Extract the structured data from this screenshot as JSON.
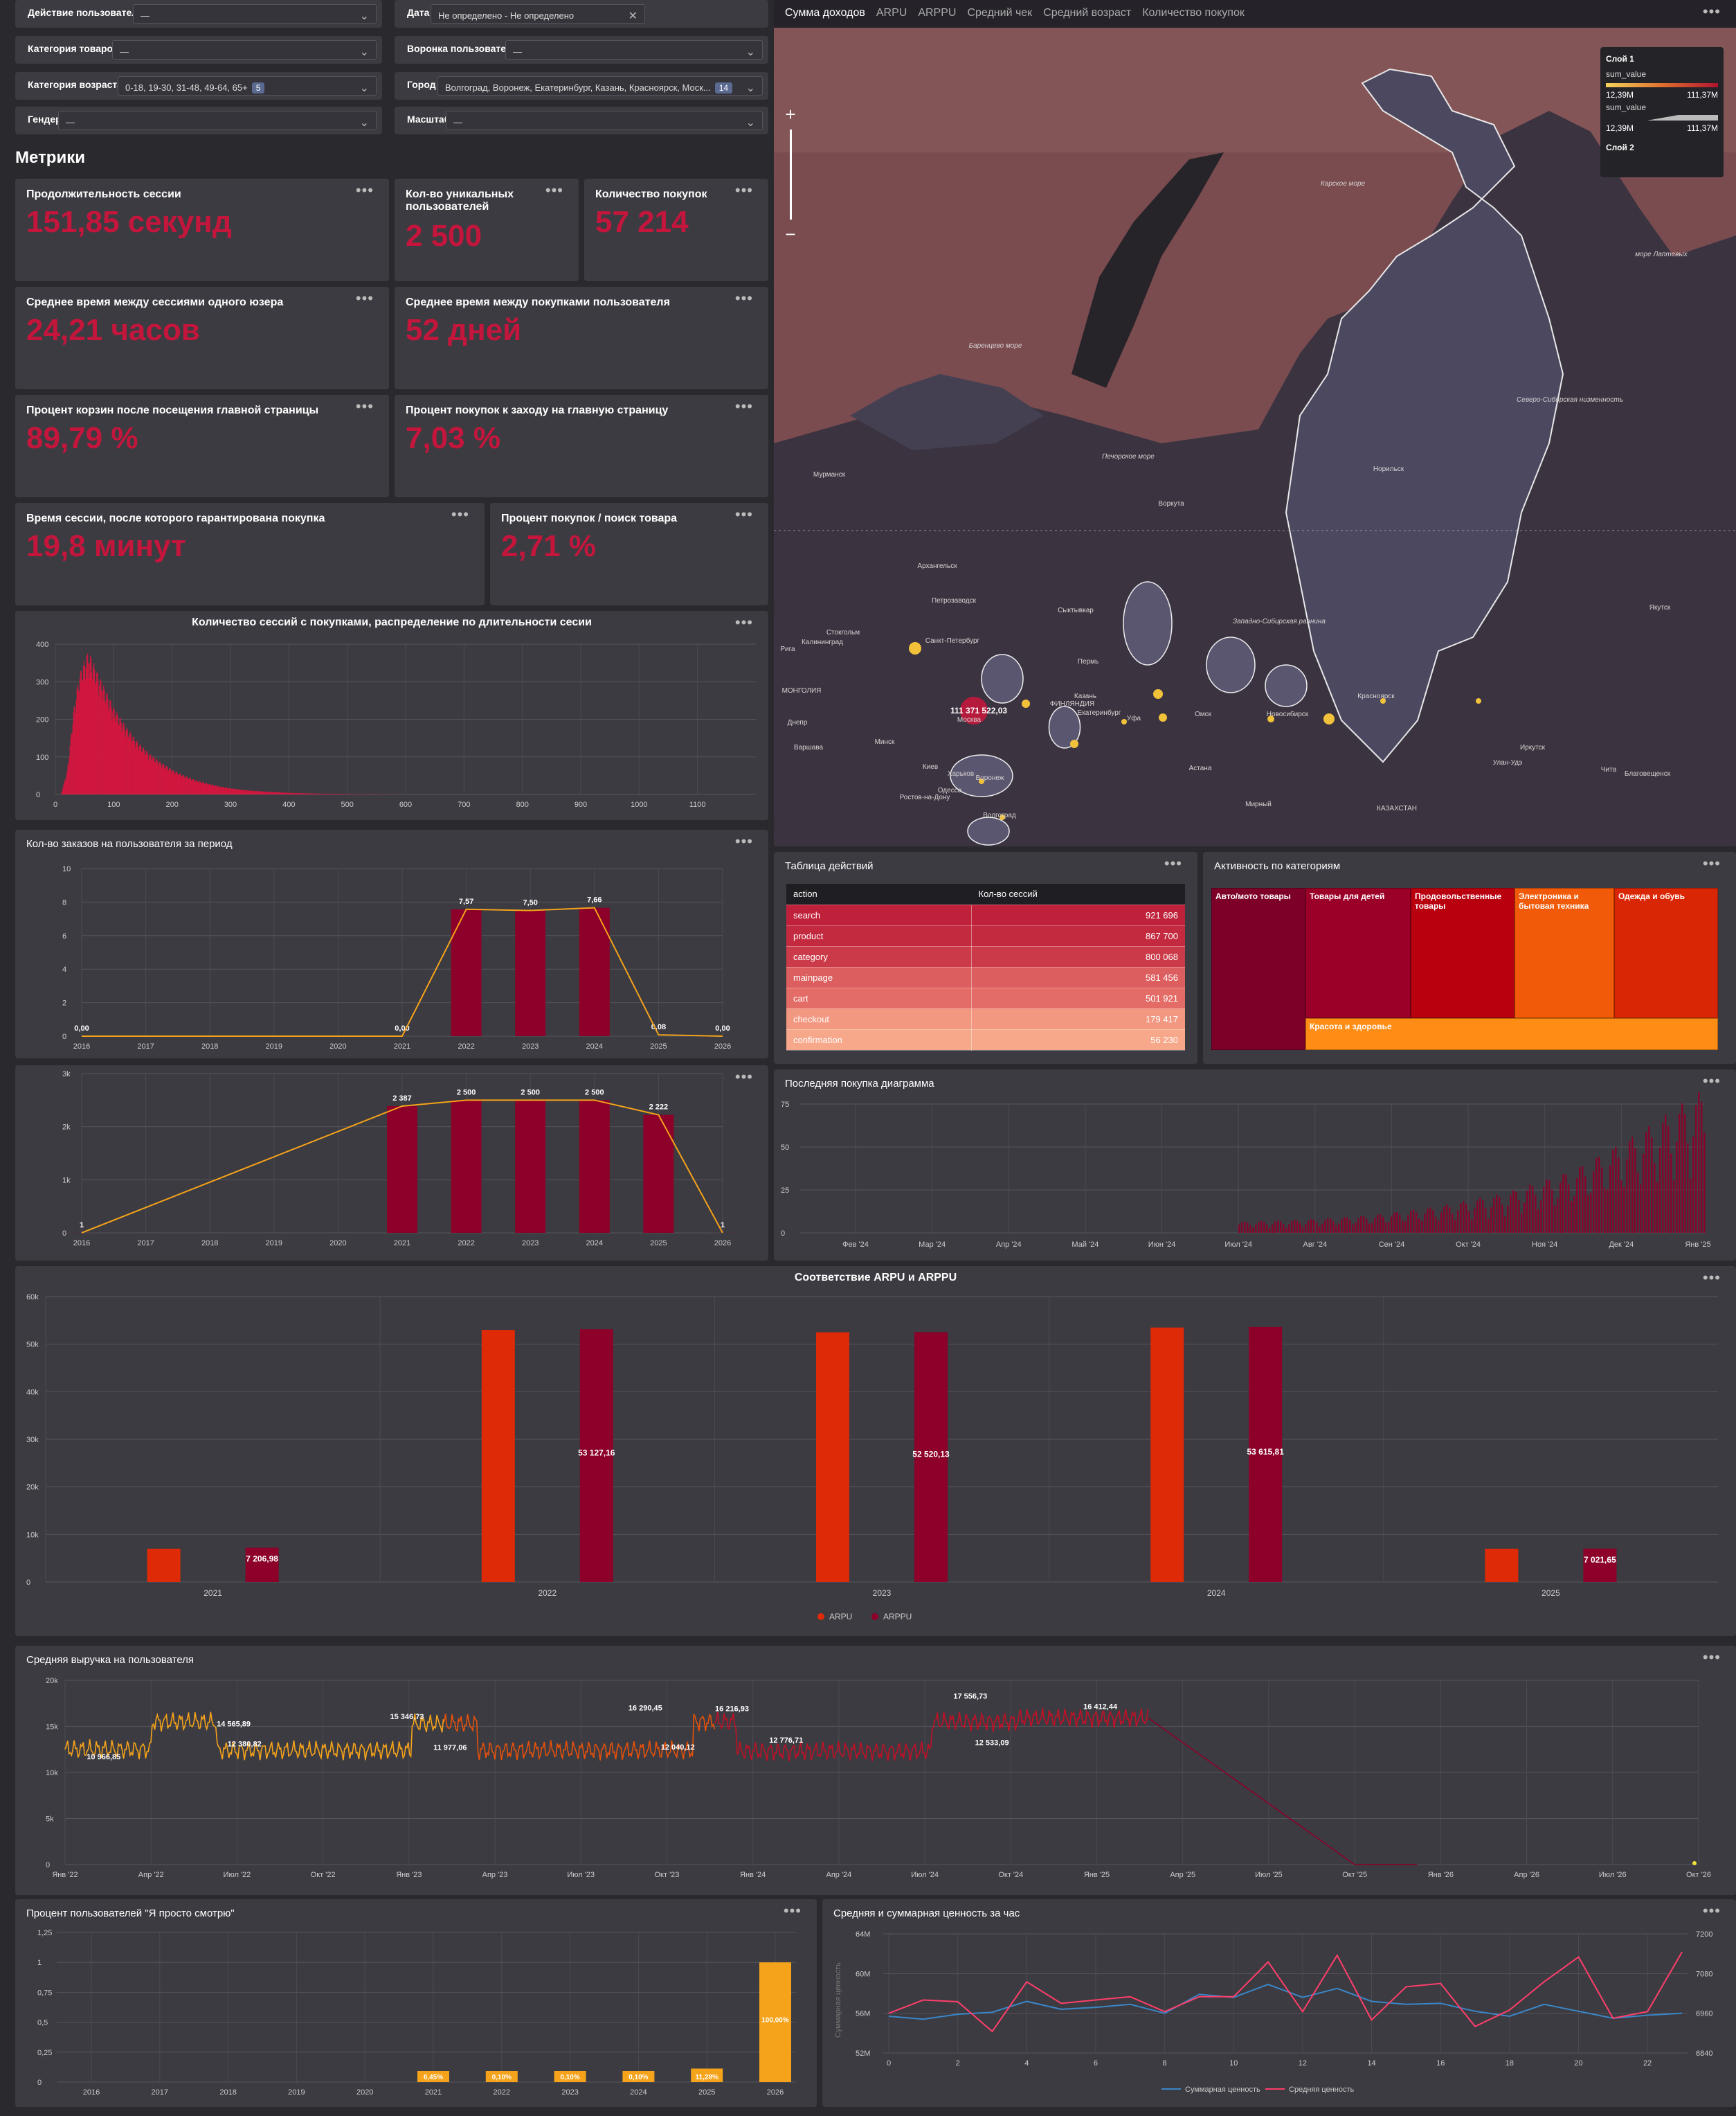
{
  "filters": [
    {
      "label": "Действие пользователя",
      "value": "—",
      "badge": ""
    },
    {
      "label": "Дата",
      "value": "Не определено - Не определено",
      "badge": ""
    },
    {
      "label": "Категория товаров",
      "value": "—",
      "badge": ""
    },
    {
      "label": "Воронка пользователя",
      "value": "—",
      "badge": ""
    },
    {
      "label": "Категория возраста",
      "value": "0-18, 19-30, 31-48, 49-64, 65+",
      "badge": "5"
    },
    {
      "label": "Город",
      "value": "Волгоград, Воронеж, Екатеринбург, Казань, Красноярск, Моск...",
      "badge": "14"
    },
    {
      "label": "Гендер",
      "value": "—",
      "badge": ""
    },
    {
      "label": "Масштаб",
      "value": "—",
      "badge": ""
    }
  ],
  "section_title": "Метрики",
  "metrics": [
    {
      "title": "Продолжительность сессии",
      "value": "151,85 секунд"
    },
    {
      "title": "Кол-во уникальных пользователей",
      "value": "2 500"
    },
    {
      "title": "Количество покупок",
      "value": "57 214"
    },
    {
      "title": "Среднее время между сессиями одного юзера",
      "value": "24,21 часов"
    },
    {
      "title": "Среднее время между покупками пользователя",
      "value": "52 дней"
    },
    {
      "title": "Процент корзин после посещения главной страницы",
      "value": "89,79 %"
    },
    {
      "title": "Процент покупок к заходу на главную страницу",
      "value": "7,03 %"
    },
    {
      "title": "Время сессии, после которого гарантирована покупка",
      "value": "19,8 минут"
    },
    {
      "title": "Процент покупок / поиск товара",
      "value": "2,71 %"
    }
  ],
  "menu_glyph": "•••",
  "map": {
    "tabs": [
      "Сумма доходов",
      "ARPU",
      "ARPPU",
      "Средний чек",
      "Средний возраст",
      "Количество покупок"
    ],
    "zoom_in": "+",
    "zoom_out": "−",
    "legend": {
      "layer1": "Слой 1",
      "field1": "sum_value",
      "min1": "12,39M",
      "max1": "111,37M",
      "field2": "sum_value",
      "min2": "12,39M",
      "max2": "111,37M",
      "layer2": "Слой 2"
    },
    "bubble_label": "111 371 522,03",
    "labels": [
      {
        "text": "Карское море"
      },
      {
        "text": "море Лаптевых"
      },
      {
        "text": "Баренцево море"
      },
      {
        "text": "Печорское море"
      },
      {
        "text": "Северо-Сибирская низменность"
      },
      {
        "text": "Западно-Сибирская равнина"
      },
      {
        "text": "Норильск"
      },
      {
        "text": "Мурманск"
      },
      {
        "text": "Воркута"
      },
      {
        "text": "Архангельск"
      },
      {
        "text": "Петрозаводск"
      },
      {
        "text": "Санкт-Петербург"
      },
      {
        "text": "Сыктывкар"
      },
      {
        "text": "Пермь"
      },
      {
        "text": "Казань"
      },
      {
        "text": "Уфа"
      },
      {
        "text": "Екатеринбург"
      },
      {
        "text": "Омск"
      },
      {
        "text": "Новосибирск"
      },
      {
        "text": "Красноярск"
      },
      {
        "text": "Иркутск"
      },
      {
        "text": "Якутск"
      },
      {
        "text": "Улан-Удэ"
      },
      {
        "text": "Чита"
      },
      {
        "text": "Благовещенск"
      },
      {
        "text": "Астана"
      },
      {
        "text": "Москва"
      },
      {
        "text": "Минск"
      },
      {
        "text": "Варшава"
      },
      {
        "text": "Киев"
      },
      {
        "text": "Харьков"
      },
      {
        "text": "Воронеж"
      },
      {
        "text": "Волгоград"
      },
      {
        "text": "Ростов-на-Дону"
      },
      {
        "text": "Одесса"
      },
      {
        "text": "Днепр"
      },
      {
        "text": "Калининград"
      },
      {
        "text": "Рига"
      },
      {
        "text": "Стокгольм"
      },
      {
        "text": "Хельсинки"
      },
      {
        "text": "Мирный"
      },
      {
        "text": "КАЗАХСТАН"
      },
      {
        "text": "МОНГОЛИЯ"
      },
      {
        "text": "ФИНЛЯНДИЯ"
      }
    ]
  },
  "duration_hist": {
    "title": "Количество сессий с покупками, распределение по длительности сесии",
    "chart_data": {
      "type": "bar",
      "xlim": [
        0,
        1200
      ],
      "ylim": [
        0,
        400
      ],
      "x_ticks": [
        0,
        100,
        200,
        300,
        400,
        500,
        600,
        700,
        800,
        900,
        1000,
        1100
      ],
      "y_ticks": [
        0,
        100,
        200,
        300,
        400
      ],
      "peak_x": 55,
      "peak_y": 350,
      "x": [
        10,
        20,
        30,
        40,
        50,
        55,
        60,
        70,
        80,
        90,
        100,
        120,
        140,
        160,
        180,
        200,
        220,
        240,
        260,
        280,
        300,
        330,
        360,
        400,
        450,
        500,
        550,
        600
      ],
      "values": [
        5,
        60,
        200,
        290,
        330,
        345,
        335,
        300,
        270,
        240,
        210,
        165,
        128,
        100,
        78,
        60,
        46,
        35,
        27,
        20,
        15,
        10,
        7,
        4,
        2,
        1,
        0.5,
        0.2
      ]
    }
  },
  "orders_chart": {
    "title": "Кол-во заказов на пользователя за период",
    "chart_data": {
      "type": "bar",
      "categories": [
        "2016",
        "2017",
        "2018",
        "2019",
        "2020",
        "2021",
        "2022",
        "2023",
        "2024",
        "2025",
        "2026"
      ],
      "series": [
        {
          "values": [
            0,
            null,
            null,
            null,
            null,
            0,
            7.57,
            7.5,
            7.66,
            0.08,
            0
          ]
        }
      ],
      "labels": [
        "0,00",
        "",
        "",
        "",
        "",
        "0,00",
        "7,57",
        "7,50",
        "7,66",
        "0,08",
        "0,00"
      ],
      "ylim": [
        0,
        10
      ],
      "y_ticks": [
        0,
        2,
        4,
        6,
        8,
        10
      ]
    }
  },
  "users_chart": {
    "chart_data": {
      "type": "bar",
      "categories": [
        "2016",
        "2017",
        "2018",
        "2019",
        "2020",
        "2021",
        "2022",
        "2023",
        "2024",
        "2025",
        "2026"
      ],
      "series": [
        {
          "values": [
            1,
            null,
            null,
            null,
            null,
            2387,
            2500,
            2500,
            2500,
            2222,
            1
          ]
        }
      ],
      "labels": [
        "1",
        "",
        "",
        "",
        "",
        "2 387",
        "2 500",
        "2 500",
        "2 500",
        "2 222",
        "1"
      ],
      "ylim": [
        0,
        3000
      ],
      "y_ticks": [
        "0",
        "1k",
        "2k",
        "3k"
      ]
    }
  },
  "actions_table": {
    "title": "Таблица действий",
    "headers": [
      "action",
      "Кол-во сессий"
    ],
    "rows": [
      {
        "action": "search",
        "count": "921 696",
        "color": "#c0213a"
      },
      {
        "action": "product",
        "count": "867 700",
        "color": "#c42a3f"
      },
      {
        "action": "category",
        "count": "800 068",
        "color": "#cb3a48"
      },
      {
        "action": "mainpage",
        "count": "581 456",
        "color": "#dd5e5e"
      },
      {
        "action": "cart",
        "count": "501 921",
        "color": "#e36c66"
      },
      {
        "action": "checkout",
        "count": "179 417",
        "color": "#f29780"
      },
      {
        "action": "confirmation",
        "count": "56 230",
        "color": "#f7a88b"
      }
    ]
  },
  "treemap": {
    "title": "Активность по категориям",
    "items": [
      {
        "label": "Авто/мото товары",
        "color": "#7d0028"
      },
      {
        "label": "Товары для детей",
        "color": "#9a0028"
      },
      {
        "label": "Продовольственные товары",
        "color": "#b8000f"
      },
      {
        "label": "Электроника и бытовая техника",
        "color": "#f05a08"
      },
      {
        "label": "Одежда и обувь",
        "color": "#d92706"
      },
      {
        "label": "Красота и здоровье",
        "color": "#ff8c14"
      }
    ]
  },
  "last_purchase": {
    "title": "Последняя покупка диаграмма",
    "chart_data": {
      "type": "bar",
      "ylim": [
        0,
        75
      ],
      "y_ticks": [
        0,
        25,
        50,
        75
      ],
      "x_ticks": [
        "Фев '24",
        "Мар '24",
        "Апр '24",
        "Май '24",
        "Июн '24",
        "Июл '24",
        "Авг '24",
        "Сен '24",
        "Окт '24",
        "Ноя '24",
        "Дек '24",
        "Янв '25"
      ],
      "x": [
        "2024-07-01",
        "2024-08-01",
        "2024-09-01",
        "2024-10-01",
        "2024-11-01",
        "2024-12-01",
        "2025-01-01",
        "2025-01-10"
      ],
      "values": [
        5,
        6,
        8,
        12,
        18,
        28,
        45,
        65
      ]
    }
  },
  "arpu": {
    "title": "Соответствие ARPU и ARPPU",
    "legend": [
      "ARPU",
      "ARPPU"
    ],
    "chart_data": {
      "type": "bar",
      "categories": [
        "2021",
        "2022",
        "2023",
        "2024",
        "2025"
      ],
      "series": [
        {
          "name": "ARPU",
          "values": [
            7000,
            53000,
            52500,
            53500,
            7000
          ],
          "color": "#de2a06"
        },
        {
          "name": "ARPPU",
          "values": [
            7206.98,
            53127.16,
            52520.13,
            53615.81,
            7021.65
          ],
          "color": "#8c0029"
        }
      ],
      "labels": [
        "7 206,98",
        "53 127,16",
        "52 520,13",
        "53 615,81",
        "7 021,65"
      ],
      "ylim": [
        0,
        60000
      ],
      "y_ticks": [
        "0",
        "10k",
        "20k",
        "30k",
        "40k",
        "50k",
        "60k"
      ]
    }
  },
  "revenue": {
    "title": "Средняя выручка на пользователя",
    "chart_data": {
      "type": "line",
      "ylim": [
        0,
        20000
      ],
      "y_ticks": [
        "0",
        "5k",
        "10k",
        "15k",
        "20k"
      ],
      "x_ticks": [
        "Янв '22",
        "Апр '22",
        "Июл '22",
        "Окт '22",
        "Янв '23",
        "Апр '23",
        "Июл '23",
        "Окт '23",
        "Янв '24",
        "Апр '24",
        "Июл '24",
        "Окт '24",
        "Янв '25",
        "Апр '25",
        "Июл '25",
        "Окт '25",
        "Янв '26",
        "Апр '26",
        "Июл '26",
        "Окт '26"
      ],
      "annotations": [
        "10 966,85",
        "14 565,89",
        "12 380,82",
        "15 346,73",
        "11 977,06",
        "16 290,45",
        "12 040,12",
        "16 216,93",
        "12 776,71",
        "17 556,73",
        "12 533,09",
        "16 412,44"
      ],
      "end_x": "2025-10-01",
      "end_y": 0
    }
  },
  "justlook": {
    "title": "Процент пользователей \"Я просто смотрю\"",
    "chart_data": {
      "type": "bar",
      "categories": [
        "2016",
        "2017",
        "2018",
        "2019",
        "2020",
        "2021",
        "2022",
        "2023",
        "2024",
        "2025",
        "2026"
      ],
      "values": [
        null,
        null,
        null,
        null,
        null,
        0.0645,
        0.001,
        0.001,
        0.001,
        0.1128,
        1
      ],
      "labels": [
        "",
        "",
        "",
        "",
        "",
        "6,45%",
        "0,10%",
        "0,10%",
        "0,10%",
        "11,28%",
        "100,00%"
      ],
      "ylim": [
        0,
        1.25
      ],
      "y_ticks": [
        "0",
        "0,25",
        "0,5",
        "0,75",
        "1",
        "1,25"
      ]
    }
  },
  "hourly": {
    "title": "Средняя и суммарная ценность за час",
    "y_left_label": "Суммарная ценность",
    "legend": [
      "Суммарная ценность",
      "Средняя ценность"
    ],
    "chart_data": {
      "type": "line",
      "x": [
        0,
        1,
        2,
        3,
        4,
        5,
        6,
        7,
        8,
        9,
        10,
        11,
        12,
        13,
        14,
        15,
        16,
        17,
        18,
        19,
        20,
        21,
        22,
        23
      ],
      "x_ticks": [
        0,
        2,
        4,
        6,
        8,
        10,
        12,
        14,
        16,
        18,
        20,
        22
      ],
      "y_left_ticks": [
        "52M",
        "56M",
        "60M",
        "64M"
      ],
      "y_left_lim": [
        52,
        64
      ],
      "y_right_ticks": [
        "6840",
        "6960",
        "7080",
        "7200"
      ],
      "y_right_lim": [
        6840,
        7200
      ],
      "series": [
        {
          "name": "Суммарная ценность",
          "axis": "left",
          "values": [
            55.7,
            55.4,
            55.9,
            56.1,
            57.2,
            56.4,
            56.6,
            56.9,
            56.0,
            57.9,
            57.6,
            58.9,
            57.6,
            58.5,
            57.2,
            56.9,
            57.0,
            56.2,
            55.7,
            56.9,
            56.2,
            55.5,
            55.8,
            56.0
          ],
          "color": "#3a86c8"
        },
        {
          "name": "Средняя ценность",
          "axis": "right",
          "values": [
            6960,
            7000,
            6995,
            6905,
            7055,
            6990,
            7000,
            7010,
            6965,
            7010,
            7010,
            7115,
            6965,
            7135,
            6940,
            7040,
            7050,
            6920,
            6970,
            7055,
            7130,
            6945,
            6965,
            7145
          ],
          "color": "#ff3e6b"
        }
      ]
    }
  }
}
